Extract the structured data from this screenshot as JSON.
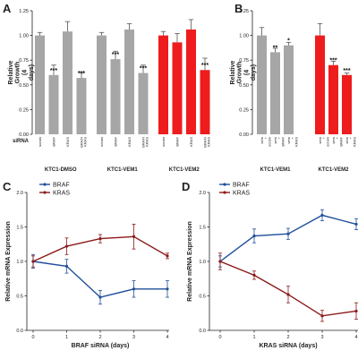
{
  "colors": {
    "gray": "#a6a6a6",
    "red": "#ee1c1c",
    "blue": "#1f4e99",
    "darkred": "#8b1a1a",
    "axis": "#222222"
  },
  "chart_data": [
    {
      "panel": "A",
      "type": "bar",
      "ylabel": "Relative Growth (4 days)",
      "row_label": "siRNA",
      "ylim": [
        0,
        1.25
      ],
      "yticks": [
        "0.00",
        "0.25",
        "0.50",
        "0.75",
        "1.00",
        "1.25"
      ],
      "groups": [
        {
          "label": "KTC1-DMSO",
          "color": "gray",
          "categories": [
            "scram",
            "BRAF",
            "KRAS",
            "BRAF/ KRAS"
          ],
          "values": [
            1.0,
            0.6,
            1.04,
            0.57
          ],
          "errors": [
            0.03,
            0.1,
            0.1,
            0.05
          ],
          "sig": [
            "",
            "***",
            "",
            "***"
          ]
        },
        {
          "label": "KTC1-VEM1",
          "color": "gray",
          "categories": [
            "scram",
            "BRAF",
            "KRAS",
            "BRAF/ KRAS"
          ],
          "values": [
            1.0,
            0.76,
            1.06,
            0.62
          ],
          "errors": [
            0.03,
            0.08,
            0.06,
            0.08
          ],
          "sig": [
            "",
            "***",
            "",
            "***"
          ]
        },
        {
          "label": "KTC1-VEM2",
          "color": "red",
          "categories": [
            "scram",
            "BRAF",
            "KRAS",
            "BRAF/ KRAS"
          ],
          "values": [
            1.0,
            0.93,
            1.06,
            0.65
          ],
          "errors": [
            0.04,
            0.09,
            0.1,
            0.12
          ],
          "sig": [
            "",
            "",
            "",
            "***"
          ]
        }
      ]
    },
    {
      "panel": "B",
      "type": "bar",
      "ylabel": "Relative Growth (4 days)",
      "ylim": [
        0,
        1.25
      ],
      "yticks": [
        "0.00",
        "0.25",
        "0.50",
        "0.75",
        "1.00",
        "1.25"
      ],
      "groups": [
        {
          "label": "KTC1-VEM1",
          "color": "gray",
          "categories": [
            "vem + scram",
            "vem + BRAF",
            "vem + KRAS"
          ],
          "values": [
            1.0,
            0.83,
            0.9
          ],
          "errors": [
            0.08,
            0.04,
            0.03
          ],
          "sig": [
            "",
            "**",
            "*"
          ]
        },
        {
          "label": "KTC1-VEM2",
          "color": "red",
          "categories": [
            "vem + scram",
            "vem + BRAF",
            "vem + KRAS"
          ],
          "values": [
            1.0,
            0.7,
            0.6
          ],
          "errors": [
            0.12,
            0.04,
            0.02
          ],
          "sig": [
            "",
            "***",
            "***"
          ]
        }
      ]
    },
    {
      "panel": "C",
      "type": "line",
      "xlabel": "BRAF siRNA (days)",
      "ylabel": "Relative mRNA Expression",
      "x": [
        0,
        1,
        2,
        3,
        4
      ],
      "xlim": [
        0,
        4
      ],
      "ylim": [
        0,
        2
      ],
      "xticks": [
        "0",
        "1",
        "2",
        "3",
        "4"
      ],
      "yticks": [
        "0.0",
        "0.5",
        "1.0",
        "1.5",
        "2.0"
      ],
      "series": [
        {
          "name": "BRAF",
          "color": "blue",
          "values": [
            1.0,
            0.93,
            0.48,
            0.6,
            0.6
          ],
          "errors": [
            0.1,
            0.1,
            0.1,
            0.12,
            0.12
          ]
        },
        {
          "name": "KRAS",
          "color": "darkred",
          "values": [
            1.0,
            1.22,
            1.33,
            1.36,
            1.08
          ],
          "errors": [
            0.08,
            0.12,
            0.06,
            0.18,
            0.04
          ]
        }
      ]
    },
    {
      "panel": "D",
      "type": "line",
      "xlabel": "KRAS siRNA (days)",
      "ylabel": "Relative mRNA Expression",
      "x": [
        0,
        1,
        2,
        3,
        4
      ],
      "xlim": [
        0,
        4
      ],
      "ylim": [
        0,
        2
      ],
      "xticks": [
        "0",
        "1",
        "2",
        "3",
        "4"
      ],
      "yticks": [
        "0.0",
        "0.5",
        "1.0",
        "1.5",
        "2.0"
      ],
      "series": [
        {
          "name": "BRAF",
          "color": "blue",
          "values": [
            1.0,
            1.37,
            1.4,
            1.67,
            1.54
          ],
          "errors": [
            0.08,
            0.1,
            0.08,
            0.08,
            0.08
          ]
        },
        {
          "name": "KRAS",
          "color": "darkred",
          "values": [
            1.0,
            0.8,
            0.52,
            0.21,
            0.28
          ],
          "errors": [
            0.12,
            0.06,
            0.12,
            0.08,
            0.12
          ]
        }
      ]
    }
  ]
}
